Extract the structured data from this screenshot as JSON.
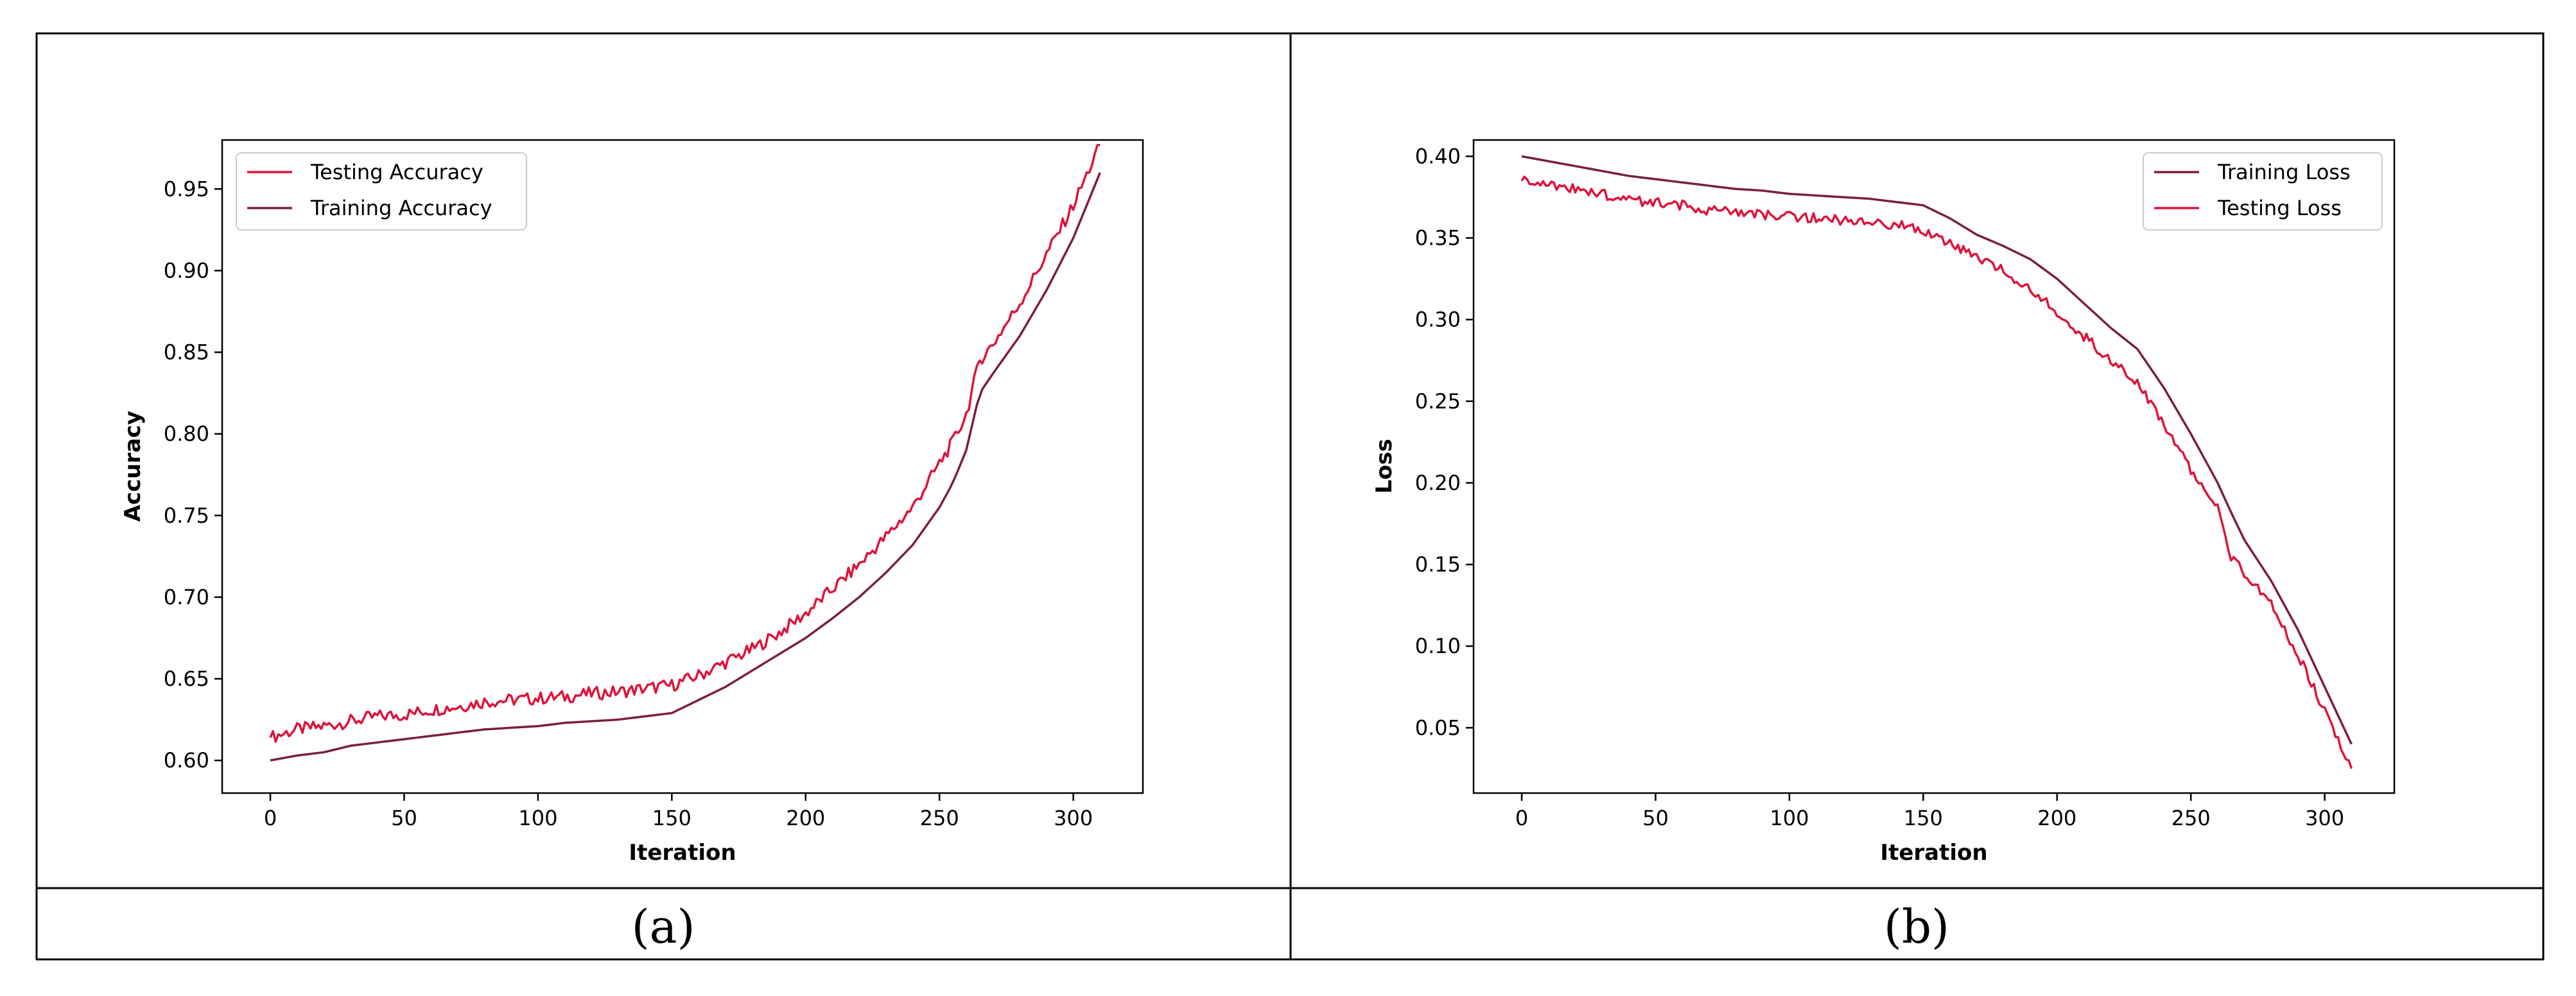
{
  "captions": [
    "(a)",
    "(b)"
  ],
  "colors": {
    "testing_accuracy": "#dc143c",
    "training_accuracy": "#7a1f3d",
    "training_loss": "#7a1f3d",
    "testing_loss": "#dc143c",
    "frame": "#000000"
  },
  "chart_data": [
    {
      "type": "line",
      "title": "",
      "xlabel": "Iteration",
      "ylabel": "Accuracy",
      "xlim": [
        -18,
        326
      ],
      "ylim": [
        0.58,
        0.98
      ],
      "xticks": [
        0,
        50,
        100,
        150,
        200,
        250,
        300
      ],
      "yticks": [
        0.6,
        0.65,
        0.7,
        0.75,
        0.8,
        0.85,
        0.9,
        0.95
      ],
      "ytick_labels": [
        "0.60",
        "0.65",
        "0.70",
        "0.75",
        "0.80",
        "0.85",
        "0.90",
        "0.95"
      ],
      "legend": {
        "placement": "upper-left",
        "entries": [
          "Testing Accuracy",
          "Training Accuracy"
        ]
      },
      "grid": false,
      "series": [
        {
          "name": "Testing Accuracy",
          "noise": 0.004,
          "x": [
            0,
            10,
            20,
            30,
            40,
            50,
            60,
            70,
            80,
            90,
            100,
            110,
            120,
            130,
            140,
            150,
            160,
            170,
            180,
            190,
            200,
            210,
            220,
            230,
            240,
            250,
            255,
            260,
            265,
            270,
            280,
            290,
            300,
            310
          ],
          "values": [
            0.614,
            0.619,
            0.621,
            0.624,
            0.627,
            0.628,
            0.631,
            0.633,
            0.636,
            0.637,
            0.638,
            0.639,
            0.641,
            0.642,
            0.644,
            0.646,
            0.652,
            0.66,
            0.668,
            0.678,
            0.69,
            0.705,
            0.72,
            0.737,
            0.755,
            0.782,
            0.795,
            0.812,
            0.845,
            0.855,
            0.88,
            0.91,
            0.94,
            0.977
          ]
        },
        {
          "name": "Training Accuracy",
          "noise": 0,
          "x": [
            0,
            10,
            20,
            30,
            40,
            50,
            60,
            70,
            80,
            90,
            100,
            110,
            120,
            130,
            140,
            150,
            160,
            170,
            180,
            190,
            200,
            210,
            220,
            230,
            240,
            250,
            255,
            260,
            265,
            270,
            280,
            290,
            300,
            310
          ],
          "values": [
            0.6,
            0.603,
            0.605,
            0.609,
            0.611,
            0.613,
            0.615,
            0.617,
            0.619,
            0.62,
            0.621,
            0.623,
            0.624,
            0.625,
            0.627,
            0.629,
            0.637,
            0.645,
            0.655,
            0.665,
            0.675,
            0.687,
            0.7,
            0.715,
            0.732,
            0.755,
            0.77,
            0.79,
            0.825,
            0.837,
            0.86,
            0.888,
            0.92,
            0.96
          ]
        }
      ]
    },
    {
      "type": "line",
      "title": "",
      "xlabel": "Iteration",
      "ylabel": "Loss",
      "xlim": [
        -18,
        326
      ],
      "ylim": [
        0.01,
        0.41
      ],
      "xticks": [
        0,
        50,
        100,
        150,
        200,
        250,
        300
      ],
      "yticks": [
        0.05,
        0.1,
        0.15,
        0.2,
        0.25,
        0.3,
        0.35,
        0.4
      ],
      "ytick_labels": [
        "0.05",
        "0.10",
        "0.15",
        "0.20",
        "0.25",
        "0.30",
        "0.35",
        "0.40"
      ],
      "legend": {
        "placement": "upper-right",
        "entries": [
          "Training Loss",
          "Testing Loss"
        ]
      },
      "grid": false,
      "series": [
        {
          "name": "Training Loss",
          "noise": 0,
          "x": [
            0,
            10,
            20,
            30,
            40,
            50,
            60,
            70,
            80,
            90,
            100,
            110,
            120,
            130,
            140,
            150,
            160,
            170,
            180,
            190,
            200,
            210,
            220,
            230,
            240,
            250,
            260,
            265,
            270,
            280,
            290,
            300,
            310
          ],
          "values": [
            0.4,
            0.397,
            0.394,
            0.391,
            0.388,
            0.386,
            0.384,
            0.382,
            0.38,
            0.379,
            0.377,
            0.376,
            0.375,
            0.374,
            0.372,
            0.37,
            0.362,
            0.352,
            0.345,
            0.337,
            0.325,
            0.31,
            0.295,
            0.282,
            0.258,
            0.23,
            0.2,
            0.182,
            0.165,
            0.14,
            0.11,
            0.075,
            0.04
          ]
        },
        {
          "name": "Testing Loss",
          "noise": 0.003,
          "x": [
            0,
            10,
            20,
            30,
            40,
            50,
            60,
            70,
            80,
            90,
            100,
            110,
            120,
            130,
            140,
            150,
            160,
            170,
            180,
            190,
            200,
            210,
            220,
            230,
            240,
            250,
            260,
            265,
            270,
            280,
            290,
            300,
            310
          ],
          "values": [
            0.385,
            0.382,
            0.38,
            0.377,
            0.373,
            0.372,
            0.37,
            0.367,
            0.366,
            0.364,
            0.363,
            0.362,
            0.361,
            0.36,
            0.358,
            0.355,
            0.347,
            0.338,
            0.33,
            0.318,
            0.305,
            0.29,
            0.275,
            0.262,
            0.235,
            0.208,
            0.185,
            0.155,
            0.145,
            0.125,
            0.095,
            0.06,
            0.025
          ]
        }
      ]
    }
  ]
}
